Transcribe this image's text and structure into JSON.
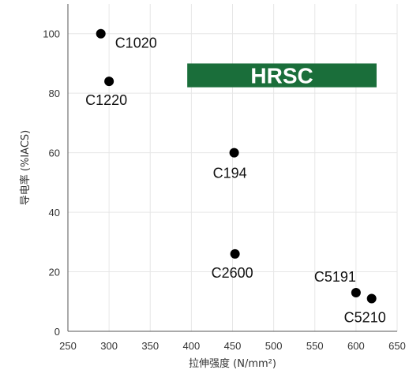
{
  "chart_data": {
    "type": "scatter",
    "xlabel": "拉伸强度 (N/mm²)",
    "ylabel": "导电率 (%IACS)",
    "xlim": [
      250,
      650
    ],
    "ylim": [
      0,
      110
    ],
    "x_ticks": [
      "250",
      "300",
      "350",
      "400",
      "450",
      "500",
      "550",
      "600",
      "650"
    ],
    "y_ticks": [
      "0",
      "20",
      "40",
      "60",
      "80",
      "100"
    ],
    "grid": true,
    "points": [
      {
        "label": "C1020",
        "x": 290,
        "y": 100
      },
      {
        "label": "C1220",
        "x": 300,
        "y": 84
      },
      {
        "label": "C194",
        "x": 452,
        "y": 60
      },
      {
        "label": "C2600",
        "x": 453,
        "y": 26
      },
      {
        "label": "C5191",
        "x": 600,
        "y": 13
      },
      {
        "label": "C5210",
        "x": 619,
        "y": 11
      }
    ],
    "annotation": {
      "text": "HRSC",
      "x_range": [
        395,
        625
      ],
      "y_range": [
        82,
        90
      ],
      "color": "#1a6e3a"
    },
    "marker_color": "#000000"
  }
}
